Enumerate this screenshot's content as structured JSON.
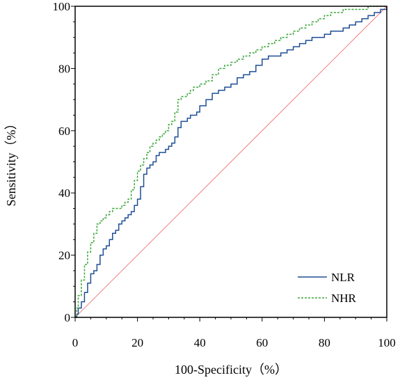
{
  "chart_data": {
    "type": "line",
    "title": "",
    "xlabel": "100-Specificity（%）",
    "ylabel": "Sensitivity（%）",
    "xlim": [
      0,
      100
    ],
    "ylim": [
      0,
      100
    ],
    "xticks": [
      "0",
      "20",
      "40",
      "60",
      "80",
      "100"
    ],
    "yticks": [
      "0",
      "20",
      "40",
      "60",
      "80",
      "100"
    ],
    "grid": false,
    "legend_position": "bottom-right",
    "reference_line": {
      "x": [
        0,
        100
      ],
      "y": [
        0,
        100
      ],
      "color": "#f08080"
    },
    "series": [
      {
        "name": "NLR",
        "color": "#1f4e96",
        "style": "solid",
        "x": [
          0,
          0.5,
          1,
          2,
          3,
          4,
          5,
          6,
          7,
          8,
          9,
          10,
          11,
          12,
          13,
          14,
          15,
          16,
          17,
          18,
          19,
          20,
          21,
          22,
          23,
          24,
          25,
          26,
          27,
          28,
          29,
          30,
          31,
          32,
          33,
          34,
          35,
          36,
          37,
          38,
          39,
          40,
          42,
          44,
          46,
          48,
          50,
          52,
          54,
          56,
          58,
          60,
          62,
          64,
          66,
          68,
          70,
          72,
          74,
          76,
          78,
          80,
          82,
          84,
          86,
          88,
          90,
          92,
          94,
          96,
          98,
          100
        ],
        "y": [
          0,
          1,
          3,
          5,
          8,
          11,
          14,
          15,
          17,
          20,
          22,
          23,
          25,
          27,
          28,
          30,
          31,
          32,
          33,
          34,
          36,
          38,
          42,
          46,
          48,
          49,
          50,
          52,
          53,
          53,
          54,
          55,
          56,
          58,
          61,
          63,
          63,
          64,
          65,
          65,
          66,
          68,
          70,
          72,
          73,
          74,
          75,
          77,
          78,
          79,
          81,
          83,
          84,
          84,
          85,
          86,
          87,
          88,
          89,
          90,
          90,
          91,
          92,
          92,
          93,
          94,
          95,
          96,
          97,
          98,
          99,
          100
        ]
      },
      {
        "name": "NHR",
        "color": "#3aa63a",
        "style": "dashed",
        "x": [
          0,
          0.5,
          1,
          2,
          3,
          4,
          5,
          6,
          7,
          8,
          9,
          10,
          11,
          12,
          13,
          14,
          15,
          16,
          17,
          18,
          19,
          20,
          21,
          22,
          23,
          24,
          25,
          26,
          27,
          28,
          29,
          30,
          31,
          32,
          33,
          34,
          35,
          36,
          37,
          38,
          39,
          40,
          42,
          44,
          46,
          48,
          50,
          52,
          54,
          56,
          58,
          60,
          62,
          64,
          66,
          68,
          70,
          72,
          74,
          76,
          78,
          80,
          82,
          84,
          86,
          88,
          90,
          92,
          94,
          96,
          98,
          100
        ],
        "y": [
          0,
          3,
          7,
          12,
          17,
          21,
          24,
          27,
          30,
          31,
          32,
          33,
          34,
          35,
          35,
          35,
          36,
          37,
          38,
          41,
          44,
          47,
          49,
          51,
          53,
          55,
          56,
          57,
          58,
          59,
          60,
          62,
          63,
          66,
          70,
          71,
          71,
          72,
          73,
          74,
          74,
          75,
          76,
          78,
          80,
          81,
          82,
          83,
          84,
          85,
          86,
          87,
          88,
          89,
          90,
          91,
          92,
          93,
          94,
          95,
          96,
          97,
          98,
          98,
          99,
          99,
          99,
          99,
          100,
          100,
          100,
          100
        ]
      }
    ]
  }
}
